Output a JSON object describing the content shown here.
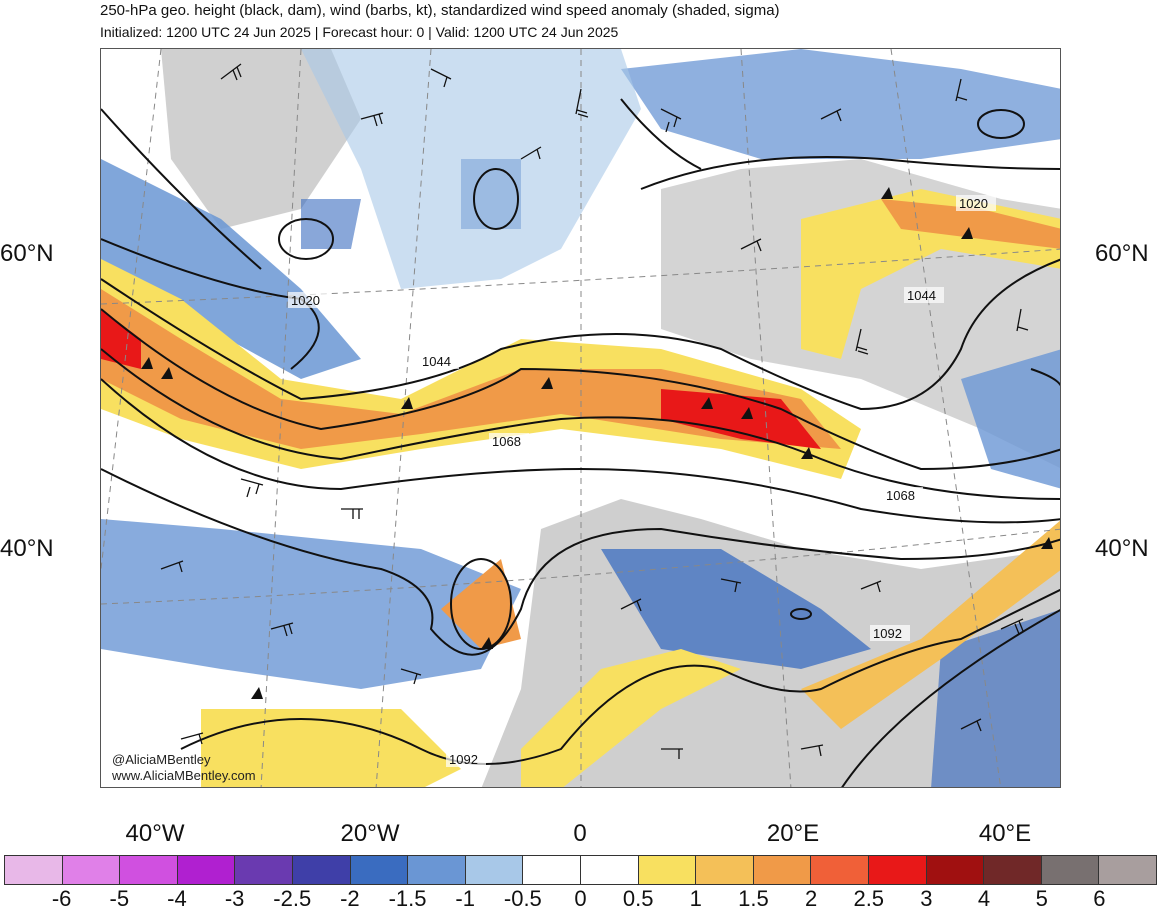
{
  "header": {
    "title": "250-hPa geo. height (black, dam), wind (barbs, kt), standardized wind speed anomaly (shaded, sigma)",
    "subtitle": "Initialized: 1200 UTC 24 Jun 2025 | Forecast hour: 0 | Valid: 1200 UTC 24 Jun 2025"
  },
  "map": {
    "lat_labels": [
      "60°N",
      "40°N"
    ],
    "lon_labels": [
      "40°W",
      "20°W",
      "0",
      "20°E",
      "40°E"
    ],
    "contour_labels": [
      "1020",
      "1020",
      "1044",
      "1044",
      "1068",
      "1068",
      "1092",
      "1092"
    ],
    "watermark": [
      "@AliciaMBentley",
      "www.AliciaMBentley.com"
    ]
  },
  "colorbar": {
    "labels": [
      "-6",
      "-5",
      "-4",
      "-3",
      "-2.5",
      "-2",
      "-1.5",
      "-1",
      "-0.5",
      "0",
      "0.5",
      "1",
      "1.5",
      "2",
      "2.5",
      "3",
      "4",
      "5",
      "6"
    ],
    "colors": [
      "#e8b8e8",
      "#e080e8",
      "#d050e0",
      "#b020d0",
      "#6a3ab0",
      "#3f3fa8",
      "#3a6cc0",
      "#6a96d4",
      "#a8c8e8",
      "#ffffff",
      "#ffffff",
      "#f8e060",
      "#f4c058",
      "#f09a48",
      "#f06038",
      "#e81818",
      "#a01010",
      "#702828",
      "#787070",
      "#a89e9e"
    ]
  }
}
